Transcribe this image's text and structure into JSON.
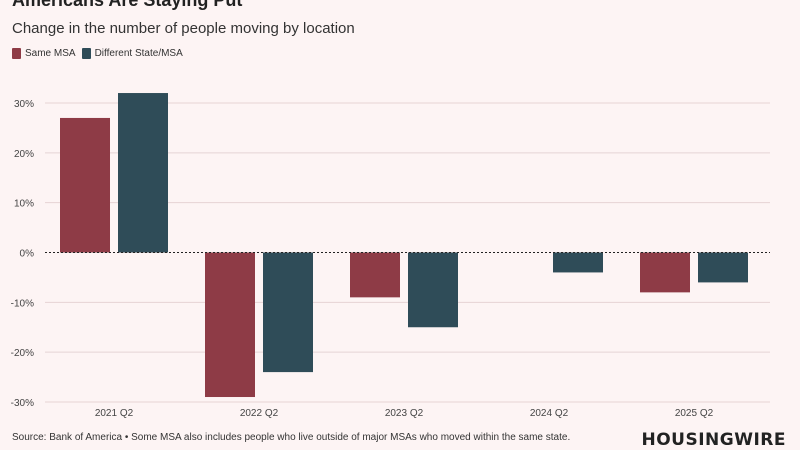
{
  "header": {
    "title": "Americans Are Staying Put",
    "subtitle": "Change in the number of people moving by location"
  },
  "legend": [
    {
      "label": "Same MSA",
      "color": "#8e3b46"
    },
    {
      "label": "Different State/MSA",
      "color": "#2f4c58"
    }
  ],
  "chart_data": {
    "type": "bar",
    "categories": [
      "2021 Q2",
      "2022 Q2",
      "2023 Q2",
      "2024 Q2",
      "2025 Q2"
    ],
    "series": [
      {
        "name": "Same MSA",
        "values": [
          27,
          -29,
          -9,
          null,
          -8
        ],
        "color": "#8e3b46"
      },
      {
        "name": "Different State/MSA",
        "values": [
          32,
          -24,
          -15,
          -4,
          -6
        ],
        "color": "#2f4c58"
      }
    ],
    "yticks": [
      "30%",
      "20%",
      "10%",
      "0%",
      "-10%",
      "-20%",
      "-30%"
    ],
    "ytick_values": [
      30,
      20,
      10,
      0,
      -10,
      -20,
      -30
    ],
    "ylim": [
      -30,
      30
    ],
    "grid": true,
    "legend_position": "top-left"
  },
  "footer": {
    "source_line1": "Source: Bank of America • Some MSA also includes people who live outside of major MSAs who moved within the same state."
  },
  "logo": "HOUSINGWIRE",
  "colors": {
    "background": "#fdf4f4",
    "grid": "#e6d3d5"
  }
}
